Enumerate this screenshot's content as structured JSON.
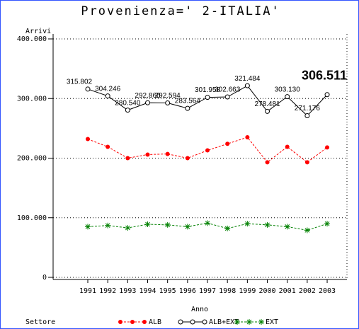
{
  "chart_data": {
    "type": "line",
    "title": "Provenienza=' 2-ITALIA'",
    "y_label": "Arrivi",
    "x_label": "Anno",
    "legend_title": "Settore",
    "categories": [
      "1991",
      "1992",
      "1993",
      "1994",
      "1995",
      "1996",
      "1997",
      "1998",
      "1999",
      "2000",
      "2001",
      "2002",
      "2003"
    ],
    "series": [
      {
        "name": "ALB",
        "color": "#ff0000",
        "marker": "dot",
        "dash": true,
        "values": [
          232000,
          219000,
          200000,
          206000,
          207000,
          200000,
          213000,
          224000,
          235000,
          193000,
          219000,
          193000,
          218000
        ]
      },
      {
        "name": "ALB+EXT",
        "color": "#000000",
        "marker": "circle",
        "dash": false,
        "values": [
          315802,
          304246,
          280540,
          292860,
          292594,
          283564,
          301958,
          302663,
          321484,
          278481,
          303130,
          271176,
          306511
        ],
        "value_labels": [
          "315.802",
          "304.246",
          "280.540",
          "292.860",
          "292.594",
          "283.564",
          "301.958",
          "302.663",
          "321.484",
          "278.481",
          "303.130",
          "271.176",
          "306.511"
        ]
      },
      {
        "name": "EXT",
        "color": "#008000",
        "marker": "star",
        "dash": true,
        "values": [
          85000,
          87000,
          83000,
          89000,
          88000,
          85000,
          91000,
          82000,
          90000,
          88000,
          85000,
          79000,
          90000
        ]
      }
    ],
    "ylim": [
      0,
      400000
    ],
    "yticks": [
      0,
      {
        "value": 100000,
        "label": "100.000"
      },
      {
        "value": 200000,
        "label": "200.000"
      },
      {
        "value": 300000,
        "label": "300.000"
      },
      {
        "value": 400000,
        "label": "400.000"
      }
    ],
    "grid": true
  }
}
